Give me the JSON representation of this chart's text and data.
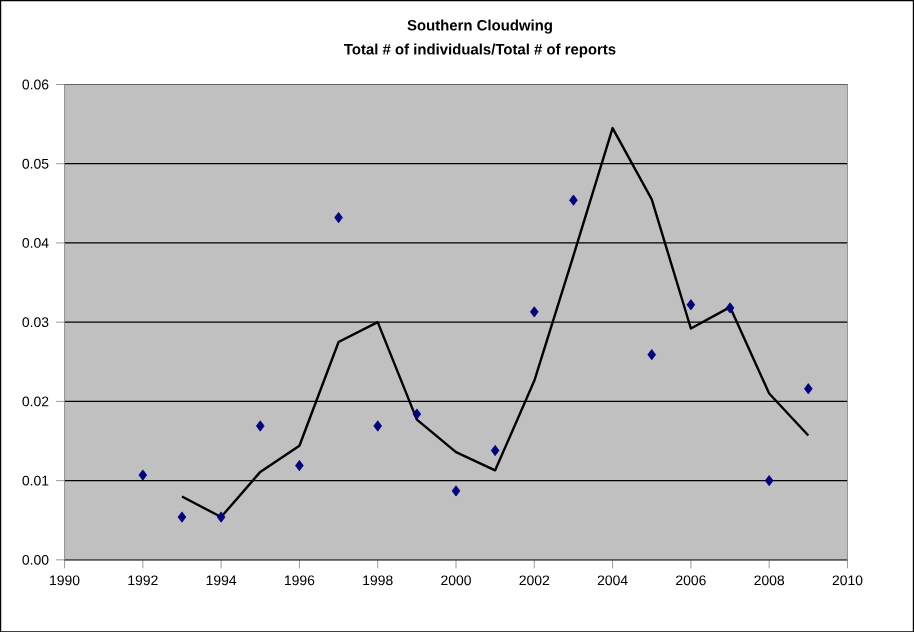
{
  "chart_data": {
    "type": "scatter",
    "title": "Southern Cloudwing",
    "subtitle": "Total # of individuals/Total # of reports",
    "series": [
      {
        "color": "#000080",
        "marker": "diamond",
        "x": [
          1992,
          1993,
          1994,
          1995,
          1996,
          1997,
          1998,
          1999,
          2000,
          2001,
          2002,
          2003,
          2005,
          2006,
          2007,
          2008,
          2009
        ],
        "values": [
          0.0107,
          0.0054,
          0.0054,
          0.0169,
          0.0119,
          0.0432,
          0.0169,
          0.0184,
          0.0087,
          0.0138,
          0.0313,
          0.0454,
          0.0259,
          0.0322,
          0.0318,
          0.01,
          0.0216
        ]
      },
      {
        "type": "line",
        "color": "#000000",
        "marker": "none",
        "x": [
          1993,
          1994,
          1995,
          1996,
          1997,
          1998,
          1999,
          2000,
          2001,
          2002,
          2003,
          2004,
          2005,
          2006,
          2007,
          2008,
          2009
        ],
        "values": [
          0.008,
          0.0054,
          0.0111,
          0.0144,
          0.0275,
          0.03,
          0.0177,
          0.0136,
          0.0113,
          0.0226,
          0.0384,
          0.0545,
          0.0455,
          0.0292,
          0.0319,
          0.021,
          0.0157
        ]
      }
    ],
    "xlim": [
      1990,
      2010
    ],
    "xticks": [
      1990,
      1992,
      1994,
      1996,
      1998,
      2000,
      2002,
      2004,
      2006,
      2008,
      2010
    ],
    "ylim": [
      0,
      0.06
    ],
    "yticks": [
      {
        "value": 0,
        "label": "0.00"
      },
      {
        "value": 0.01,
        "label": "0.01"
      },
      {
        "value": 0.02,
        "label": "0.02"
      },
      {
        "value": 0.03,
        "label": "0.03"
      },
      {
        "value": 0.04,
        "label": "0.04"
      },
      {
        "value": 0.05,
        "label": "0.05"
      },
      {
        "value": 0.06,
        "label": "0.06"
      }
    ],
    "grid": "y"
  }
}
